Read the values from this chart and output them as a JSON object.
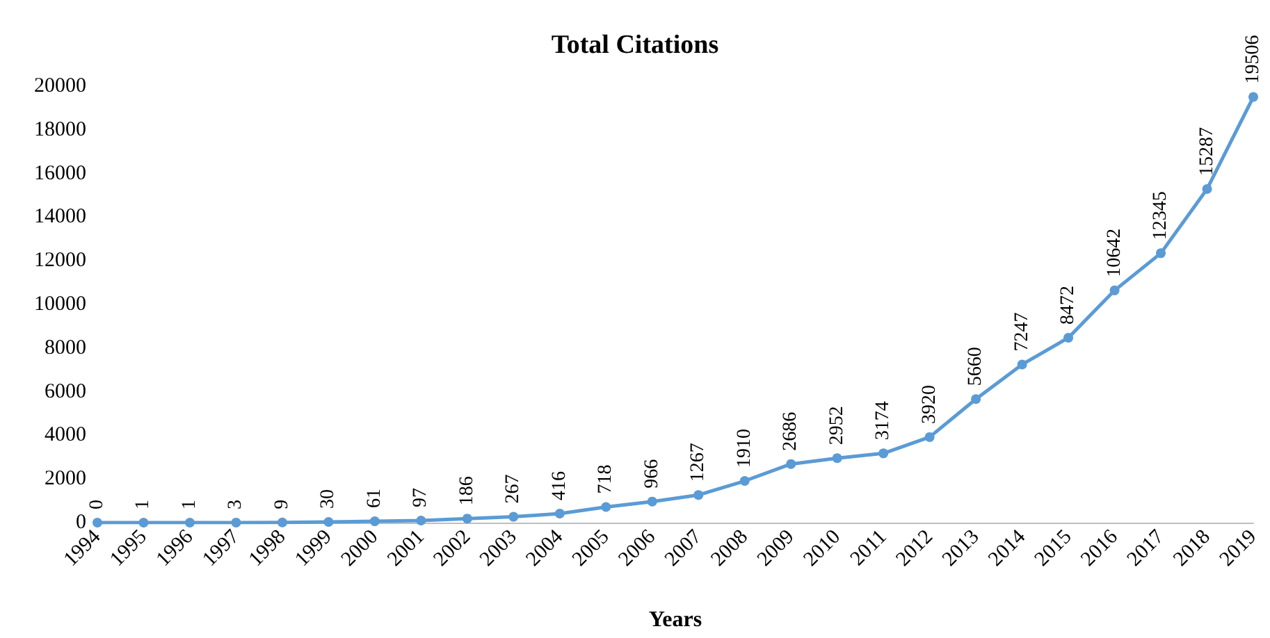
{
  "chart_data": {
    "type": "line",
    "title": "Total Citations",
    "xlabel": "Years",
    "categories": [
      "1994",
      "1995",
      "1996",
      "1997",
      "1998",
      "1999",
      "2000",
      "2001",
      "2002",
      "2003",
      "2004",
      "2005",
      "2006",
      "2007",
      "2008",
      "2009",
      "2010",
      "2011",
      "2012",
      "2013",
      "2014",
      "2015",
      "2016",
      "2017",
      "2018",
      "2019"
    ],
    "series": [
      {
        "color": "#5b9bd5",
        "values": [
          0,
          1,
          1,
          3,
          9,
          30,
          61,
          97,
          186,
          267,
          416,
          718,
          966,
          1267,
          1910,
          2686,
          2952,
          3174,
          3920,
          5660,
          7247,
          8472,
          10642,
          12345,
          15287,
          19506
        ]
      }
    ],
    "ylim": [
      0,
      20000
    ],
    "yticks": [
      0,
      2000,
      4000,
      6000,
      8000,
      10000,
      12000,
      14000,
      16000,
      18000,
      20000
    ],
    "grid": false,
    "marker": "circle",
    "line_style": "solid",
    "data_labels": true
  }
}
